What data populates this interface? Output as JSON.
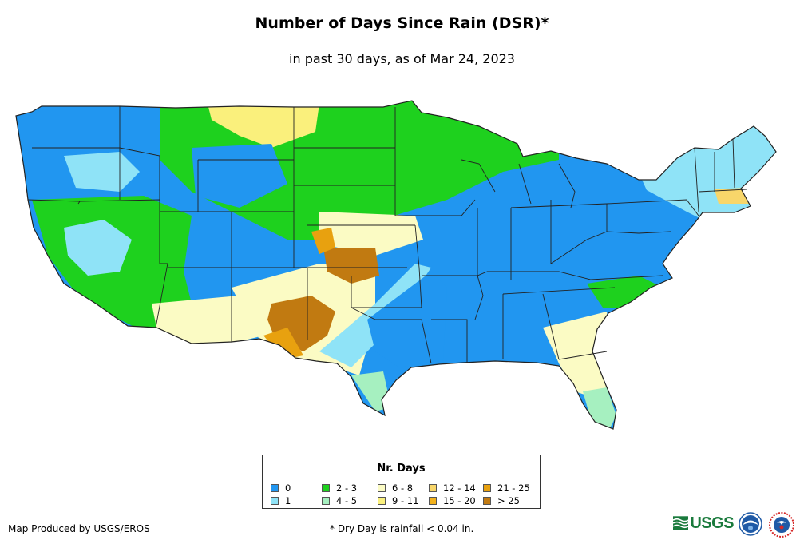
{
  "title": "Number of Days Since Rain (DSR)*",
  "subtitle": "in past 30 days, as of Mar 24, 2023",
  "legend": {
    "title": "Nr. Days",
    "items": [
      {
        "label": "0",
        "color": "#2196f0"
      },
      {
        "label": "1",
        "color": "#8fe3f7"
      },
      {
        "label": "2 - 3",
        "color": "#1ed11e"
      },
      {
        "label": "4 - 5",
        "color": "#a6f0c0"
      },
      {
        "label": "6 - 8",
        "color": "#fbfbc4"
      },
      {
        "label": "9 - 11",
        "color": "#faf07c"
      },
      {
        "label": "12 - 14",
        "color": "#f8d66a"
      },
      {
        "label": "15 - 20",
        "color": "#f3b21c"
      },
      {
        "label": "21 - 25",
        "color": "#e8a10f"
      },
      {
        "label": "> 25",
        "color": "#c17a11"
      }
    ]
  },
  "credit": "Map Produced by USGS/EROS",
  "footnote": "* Dry Day is rainfall < 0.04 in.",
  "logos": {
    "usgs_text": "USGS",
    "usgs_color": "#1a7a3c",
    "noaa_color": "#1f5aa6",
    "nws_color": "#d62828"
  }
}
